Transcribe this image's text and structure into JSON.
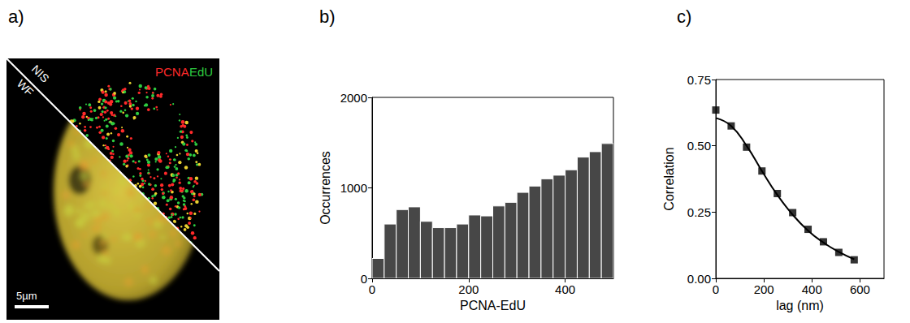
{
  "panel_labels": [
    "a)",
    "b)",
    "c)"
  ],
  "image": {
    "channels": [
      {
        "name": "PCNA",
        "color": "#ff2a2a"
      },
      {
        "name": "EdU",
        "color": "#2ecc40"
      }
    ],
    "upper_half": "NIS",
    "lower_half": "WF",
    "scale_bar": "5µm"
  },
  "chart_data": [
    {
      "type": "histogram",
      "bins": [
        0,
        25,
        50,
        75,
        100,
        125,
        150,
        175,
        200,
        225,
        250,
        275,
        300,
        325,
        350,
        375,
        400,
        425,
        450,
        475,
        500
      ],
      "values": [
        220,
        600,
        760,
        790,
        630,
        560,
        560,
        600,
        700,
        690,
        800,
        840,
        950,
        1020,
        1100,
        1140,
        1200,
        1340,
        1400,
        1490
      ],
      "color": "#474747",
      "x_label": "PCNA-EdU",
      "y_label": "Occurrences",
      "xlim": [
        0,
        500
      ],
      "xticks": [
        0,
        200,
        400
      ],
      "ylim": [
        0,
        2000
      ],
      "yticks": [
        0,
        1000,
        2000
      ]
    },
    {
      "type": "scatter",
      "x_label": "lag (nm)",
      "y_label": "Correlation",
      "xlim": [
        0,
        700
      ],
      "xticks": [
        0,
        200,
        400,
        600
      ],
      "ylim": [
        0,
        0.75
      ],
      "yticks": [
        {
          "value": 0,
          "label": "0.00"
        },
        0.25,
        {
          "value": 0.5,
          "label": "0.50"
        },
        0.75
      ],
      "series": [
        {
          "type": "scatter",
          "marker": "square",
          "color": "#000000",
          "x": [
            0,
            64,
            128,
            192,
            256,
            320,
            384,
            448,
            512,
            576
          ],
          "values": [
            0.635,
            0.575,
            0.495,
            0.405,
            0.32,
            0.248,
            0.185,
            0.138,
            0.098,
            0.07
          ]
        },
        {
          "type": "line",
          "line_style": "solid",
          "color": "#000000",
          "x": [
            0,
            64,
            128,
            192,
            256,
            320,
            384,
            448,
            512,
            576
          ],
          "values": [
            0.605,
            0.575,
            0.5,
            0.405,
            0.315,
            0.24,
            0.18,
            0.135,
            0.1,
            0.072
          ]
        }
      ]
    }
  ]
}
